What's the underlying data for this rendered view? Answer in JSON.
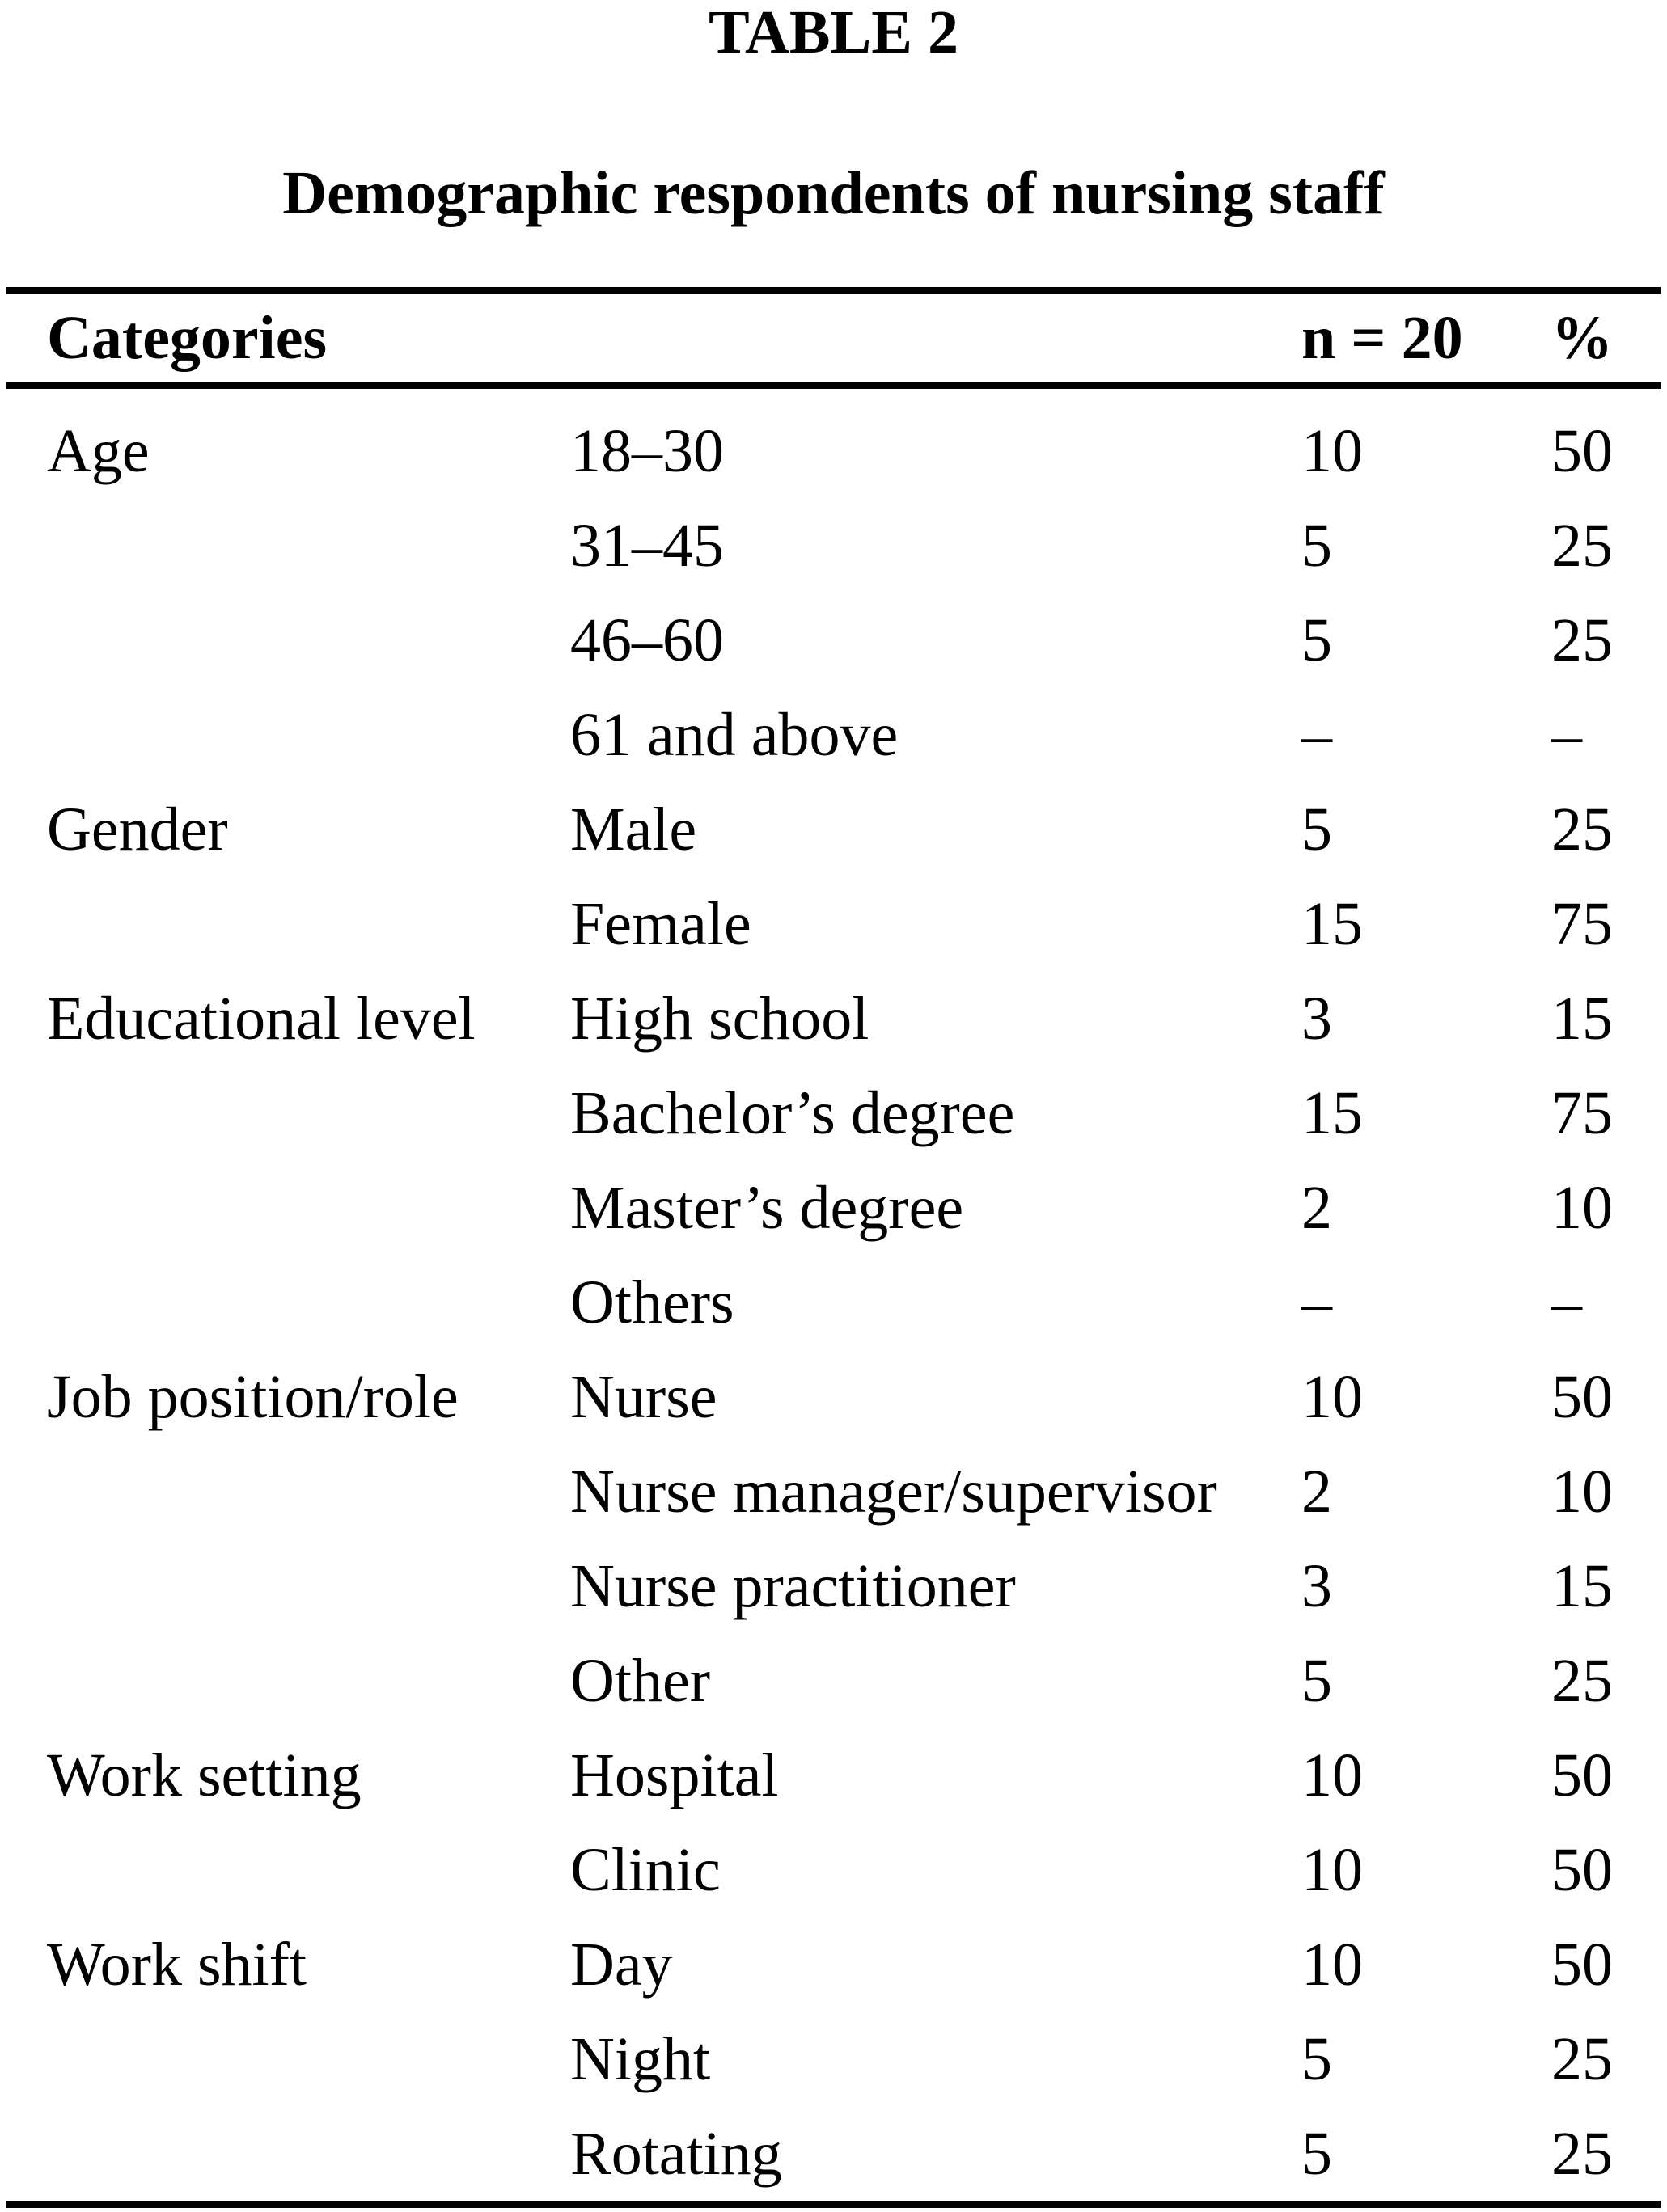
{
  "table": {
    "label": "TABLE 2",
    "caption": "Demographic respondents of nursing staff",
    "columns": {
      "categories": "Categories",
      "n": "n = 20",
      "percent": "%"
    },
    "rows": [
      {
        "category": "Age",
        "item": "18–30",
        "n": "10",
        "percent": "50"
      },
      {
        "category": "",
        "item": "31–45",
        "n": "5",
        "percent": "25"
      },
      {
        "category": "",
        "item": "46–60",
        "n": "5",
        "percent": "25"
      },
      {
        "category": "",
        "item": "61 and above",
        "n": "–",
        "percent": "–"
      },
      {
        "category": "Gender",
        "item": "Male",
        "n": "5",
        "percent": "25"
      },
      {
        "category": "",
        "item": "Female",
        "n": "15",
        "percent": "75"
      },
      {
        "category": "Educational level",
        "item": "High school",
        "n": "3",
        "percent": "15"
      },
      {
        "category": "",
        "item": "Bachelor’s degree",
        "n": "15",
        "percent": "75"
      },
      {
        "category": "",
        "item": "Master’s degree",
        "n": "2",
        "percent": "10"
      },
      {
        "category": "",
        "item": "Others",
        "n": "–",
        "percent": "–"
      },
      {
        "category": "Job position/role",
        "item": "Nurse",
        "n": "10",
        "percent": "50"
      },
      {
        "category": "",
        "item": "Nurse manager/supervisor",
        "n": "2",
        "percent": "10"
      },
      {
        "category": "",
        "item": "Nurse practitioner",
        "n": "3",
        "percent": "15"
      },
      {
        "category": "",
        "item": "Other",
        "n": "5",
        "percent": "25"
      },
      {
        "category": "Work setting",
        "item": "Hospital",
        "n": "10",
        "percent": "50"
      },
      {
        "category": "",
        "item": "Clinic",
        "n": "10",
        "percent": "50"
      },
      {
        "category": "Work shift",
        "item": "Day",
        "n": "10",
        "percent": "50"
      },
      {
        "category": "",
        "item": "Night",
        "n": "5",
        "percent": "25"
      },
      {
        "category": "",
        "item": "Rotating",
        "n": "5",
        "percent": "25"
      }
    ]
  }
}
